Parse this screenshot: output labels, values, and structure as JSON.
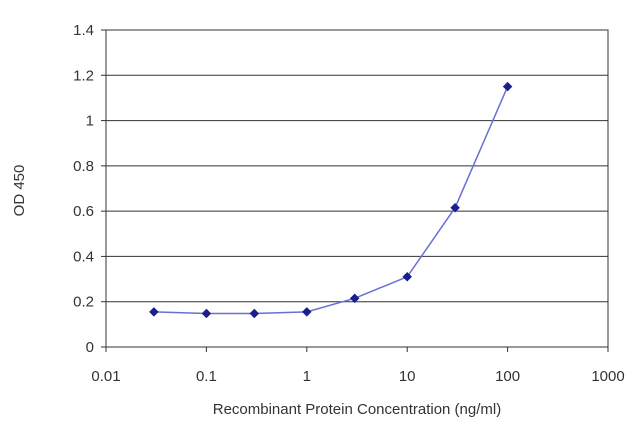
{
  "chart_data": {
    "type": "line",
    "x_scale": "log",
    "x_ticks": [
      "0.01",
      "0.1",
      "1",
      "10",
      "100",
      "1000"
    ],
    "x_tick_values": [
      0.01,
      0.1,
      1,
      10,
      100,
      1000
    ],
    "y_ticks": [
      "0",
      "0.2",
      "0.4",
      "0.6",
      "0.8",
      "1",
      "1.2",
      "1.4"
    ],
    "y_tick_values": [
      0,
      0.2,
      0.4,
      0.6,
      0.8,
      1,
      1.2,
      1.4
    ],
    "xlim": [
      0.01,
      1000
    ],
    "ylim": [
      0,
      1.4
    ],
    "grid": "horizontal",
    "xlabel": "Recombinant Protein Concentration (ng/ml)",
    "ylabel": "OD 450",
    "series": [
      {
        "x": [
          0.03,
          0.1,
          0.3,
          1,
          3,
          10,
          30,
          100
        ],
        "y": [
          0.155,
          0.148,
          0.148,
          0.155,
          0.215,
          0.31,
          0.615,
          1.15
        ]
      }
    ],
    "colors": {
      "line": "#6a6fd6",
      "marker": "#1a1f8c",
      "grid": "#333333",
      "axis": "#333333"
    }
  }
}
